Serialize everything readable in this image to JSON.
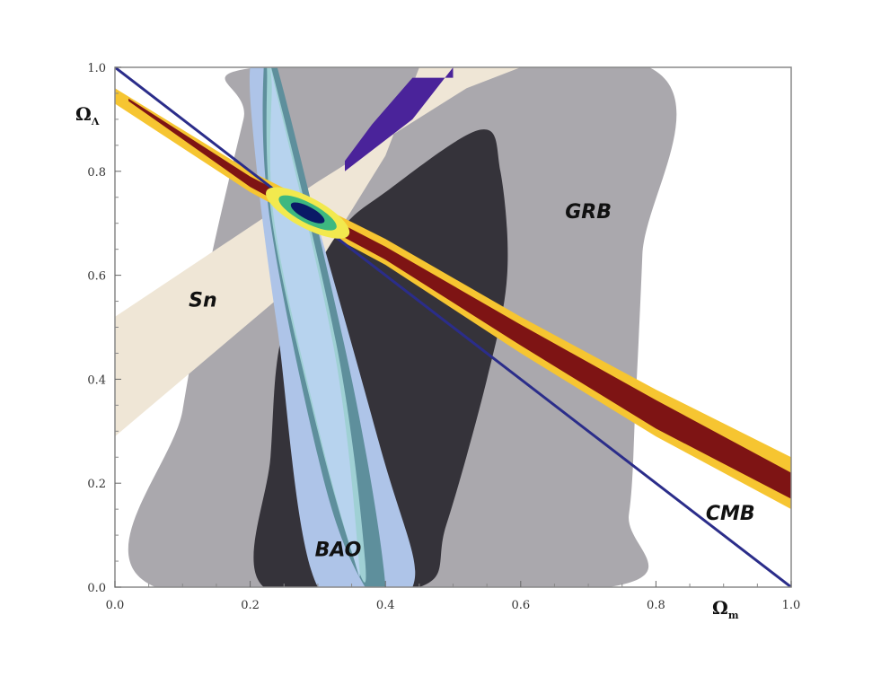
{
  "chart_data": {
    "type": "area",
    "title": "",
    "xlabel": "Ω",
    "xlabel_sub": "m",
    "ylabel": "Ω",
    "ylabel_sub": "Λ",
    "xlim": [
      0.0,
      1.0
    ],
    "ylim": [
      0.0,
      1.0
    ],
    "x_ticks": [
      "0.0",
      "0.2",
      "0.4",
      "0.6",
      "0.8",
      "1.0"
    ],
    "y_ticks": [
      "0.0",
      "0.2",
      "0.4",
      "0.6",
      "0.8",
      "1.0"
    ],
    "x_tick_values": [
      0.0,
      0.2,
      0.4,
      0.6,
      0.8,
      1.0
    ],
    "y_tick_values": [
      0.0,
      0.2,
      0.4,
      0.6,
      0.8,
      1.0
    ],
    "grid": false,
    "series": [
      {
        "name": "GRB",
        "kind": "confidence-region",
        "colors": [
          "#aaa8ad",
          "#35333a"
        ],
        "label_at": [
          0.7,
          0.72
        ],
        "outer": [
          [
            0.06,
            0.0
          ],
          [
            0.1,
            0.34
          ],
          [
            0.14,
            0.62
          ],
          [
            0.19,
            0.9
          ],
          [
            0.21,
            1.0
          ],
          [
            0.79,
            1.0
          ],
          [
            0.78,
            0.64
          ],
          [
            0.77,
            0.36
          ],
          [
            0.76,
            0.14
          ],
          [
            0.73,
            0.0
          ]
        ],
        "inner": [
          [
            0.22,
            0.0
          ],
          [
            0.23,
            0.25
          ],
          [
            0.25,
            0.5
          ],
          [
            0.33,
            0.68
          ],
          [
            0.4,
            0.76
          ],
          [
            0.54,
            0.88
          ],
          [
            0.57,
            0.8
          ],
          [
            0.58,
            0.6
          ],
          [
            0.55,
            0.4
          ],
          [
            0.49,
            0.12
          ],
          [
            0.45,
            0.0
          ]
        ]
      },
      {
        "name": "Sn",
        "kind": "confidence-region",
        "colors": [
          "#efe6d6"
        ],
        "label_at": [
          0.13,
          0.55
        ],
        "outer": [
          [
            0.0,
            0.52
          ],
          [
            0.3,
            0.78
          ],
          [
            0.52,
            0.96
          ],
          [
            0.6,
            1.0
          ],
          [
            0.45,
            1.0
          ],
          [
            0.4,
            0.83
          ],
          [
            0.3,
            0.62
          ],
          [
            0.0,
            0.29
          ]
        ]
      },
      {
        "name": "",
        "kind": "confidence-region",
        "colors": [
          "#4a239a"
        ],
        "outer": [
          [
            0.34,
            0.8
          ],
          [
            0.44,
            0.9
          ],
          [
            0.5,
            1.0
          ],
          [
            0.5,
            0.98
          ],
          [
            0.44,
            0.98
          ],
          [
            0.38,
            0.89
          ],
          [
            0.34,
            0.82
          ]
        ]
      },
      {
        "name": "BAO",
        "kind": "confidence-region",
        "colors": [
          "#aec4e8",
          "#5e8f9c",
          "#9fd0d4"
        ],
        "label_at": [
          0.33,
          0.07
        ],
        "outer": [
          [
            0.2,
            1.0
          ],
          [
            0.23,
            1.0
          ],
          [
            0.39,
            0.28
          ],
          [
            0.44,
            0.0
          ],
          [
            0.3,
            0.0
          ],
          [
            0.24,
            0.5
          ],
          [
            0.21,
            0.8
          ]
        ],
        "inner": [
          [
            0.22,
            1.0
          ],
          [
            0.24,
            1.0
          ],
          [
            0.35,
            0.4
          ],
          [
            0.4,
            0.0
          ],
          [
            0.37,
            0.0
          ],
          [
            0.31,
            0.2
          ],
          [
            0.23,
            0.7
          ]
        ],
        "core": [
          [
            0.225,
            0.98
          ],
          [
            0.235,
            0.98
          ],
          [
            0.33,
            0.45
          ],
          [
            0.37,
            0.05
          ],
          [
            0.355,
            0.05
          ],
          [
            0.3,
            0.3
          ],
          [
            0.233,
            0.7
          ]
        ]
      },
      {
        "name": "CMB",
        "kind": "confidence-region",
        "colors": [
          "#f6c531",
          "#d8951e",
          "#7e1414"
        ],
        "label_at": [
          0.91,
          0.14
        ],
        "outer": [
          [
            0.0,
            0.96
          ],
          [
            0.2,
            0.8
          ],
          [
            0.4,
            0.67
          ],
          [
            0.6,
            0.52
          ],
          [
            0.8,
            0.38
          ],
          [
            1.0,
            0.25
          ],
          [
            1.0,
            0.15
          ],
          [
            0.8,
            0.29
          ],
          [
            0.6,
            0.45
          ],
          [
            0.4,
            0.62
          ],
          [
            0.2,
            0.76
          ],
          [
            0.0,
            0.93
          ]
        ],
        "core": [
          [
            0.02,
            0.94
          ],
          [
            0.2,
            0.79
          ],
          [
            0.4,
            0.655
          ],
          [
            0.6,
            0.505
          ],
          [
            0.8,
            0.36
          ],
          [
            1.0,
            0.22
          ],
          [
            1.0,
            0.17
          ],
          [
            0.8,
            0.305
          ],
          [
            0.6,
            0.465
          ],
          [
            0.4,
            0.63
          ],
          [
            0.2,
            0.77
          ],
          [
            0.02,
            0.935
          ]
        ]
      },
      {
        "name": "",
        "kind": "line",
        "color": "#2b2d8a",
        "x": [
          0.0,
          1.0
        ],
        "y": [
          1.0,
          0.0
        ]
      },
      {
        "name": "",
        "kind": "combined-ellipse",
        "center": [
          0.285,
          0.72
        ],
        "colors": [
          "#f2e94e",
          "#3db880",
          "#0a1a66"
        ]
      }
    ]
  }
}
